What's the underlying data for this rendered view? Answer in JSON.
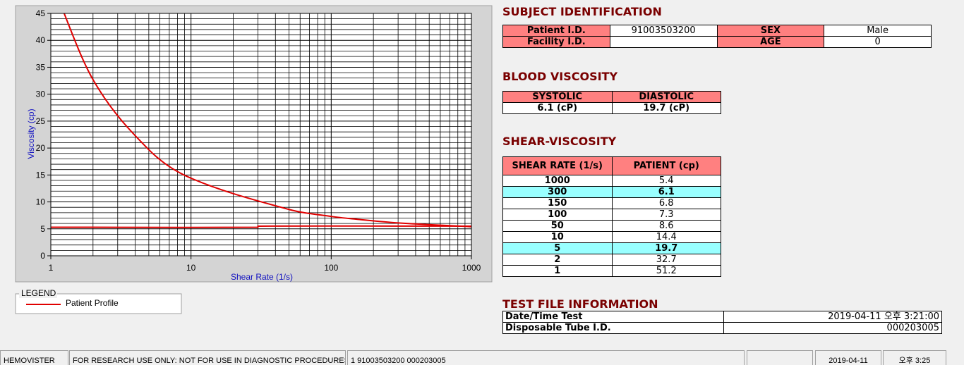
{
  "chart_data": {
    "type": "line",
    "xlabel": "Shear Rate (1/s)",
    "ylabel": "Viscosity (cp)",
    "legend_title": "LEGEND",
    "xscale": "log",
    "xlim": [
      1,
      1000
    ],
    "xticks": [
      1,
      10,
      100,
      1000
    ],
    "xminorticks": [
      2,
      3,
      4,
      5,
      6,
      7,
      8,
      9,
      20,
      30,
      40,
      50,
      60,
      70,
      80,
      90,
      200,
      300,
      400,
      500,
      600,
      700,
      800,
      900
    ],
    "ylim": [
      0,
      45
    ],
    "yticks": [
      0,
      5,
      10,
      15,
      20,
      25,
      30,
      35,
      40,
      45
    ],
    "yminorticks": [
      1,
      2,
      3,
      4,
      6,
      7,
      8,
      9,
      11,
      12,
      13,
      14,
      16,
      17,
      18,
      19,
      21,
      22,
      23,
      24,
      26,
      27,
      28,
      29,
      31,
      32,
      33,
      34,
      36,
      37,
      38,
      39,
      41,
      42,
      43,
      44
    ],
    "grid": true,
    "series": [
      {
        "name": "Patient Profile",
        "color": "#e00000",
        "x": [
          1,
          2,
          5,
          10,
          50,
          100,
          150,
          300,
          1000
        ],
        "values": [
          51.2,
          32.7,
          19.7,
          14.4,
          8.6,
          7.3,
          6.8,
          6.1,
          5.4
        ]
      },
      {
        "color": "#e00000",
        "x": [
          1,
          30,
          30,
          1000
        ],
        "values": [
          5.3,
          5.3,
          5.5,
          5.5
        ]
      }
    ]
  },
  "subject": {
    "title": "SUBJECT IDENTIFICATION",
    "patient_label": "Patient I.D.",
    "patient_id": "91003503200",
    "sex_label": "SEX",
    "sex": "Male",
    "facility_label": "Facility I.D.",
    "age_label": "AGE",
    "age": "0"
  },
  "blood_viscosity": {
    "title": "BLOOD VISCOSITY",
    "headers": [
      "SYSTOLIC",
      "DIASTOLIC"
    ],
    "values": [
      "6.1 (cP)",
      "19.7 (cP)"
    ]
  },
  "shear_viscosity": {
    "title": "SHEAR-VISCOSITY",
    "headers": [
      "SHEAR RATE (1/s)",
      "PATIENT (cp)"
    ],
    "rows": [
      [
        1000,
        5.4
      ],
      [
        300,
        6.1
      ],
      [
        150,
        6.8
      ],
      [
        100,
        7.3
      ],
      [
        50,
        8.6
      ],
      [
        10,
        14.4
      ],
      [
        5,
        19.7
      ],
      [
        2,
        32.7
      ],
      [
        1,
        51.2
      ]
    ],
    "highlight_rows": [
      1,
      6
    ]
  },
  "test_file": {
    "title": "TEST FILE INFORMATION",
    "rows": [
      [
        "Date/Time Test",
        "2019-04-11  오후 3:21:00"
      ],
      [
        "Disposable Tube I.D.",
        "000203005"
      ]
    ]
  },
  "status_bar": [
    "HEMOVISTER",
    "FOR RESEARCH USE ONLY: NOT FOR USE IN DIAGNOSTIC PROCEDURES",
    "1  91003503200  000203005",
    "2019-04-11",
    "오후 3:25"
  ]
}
